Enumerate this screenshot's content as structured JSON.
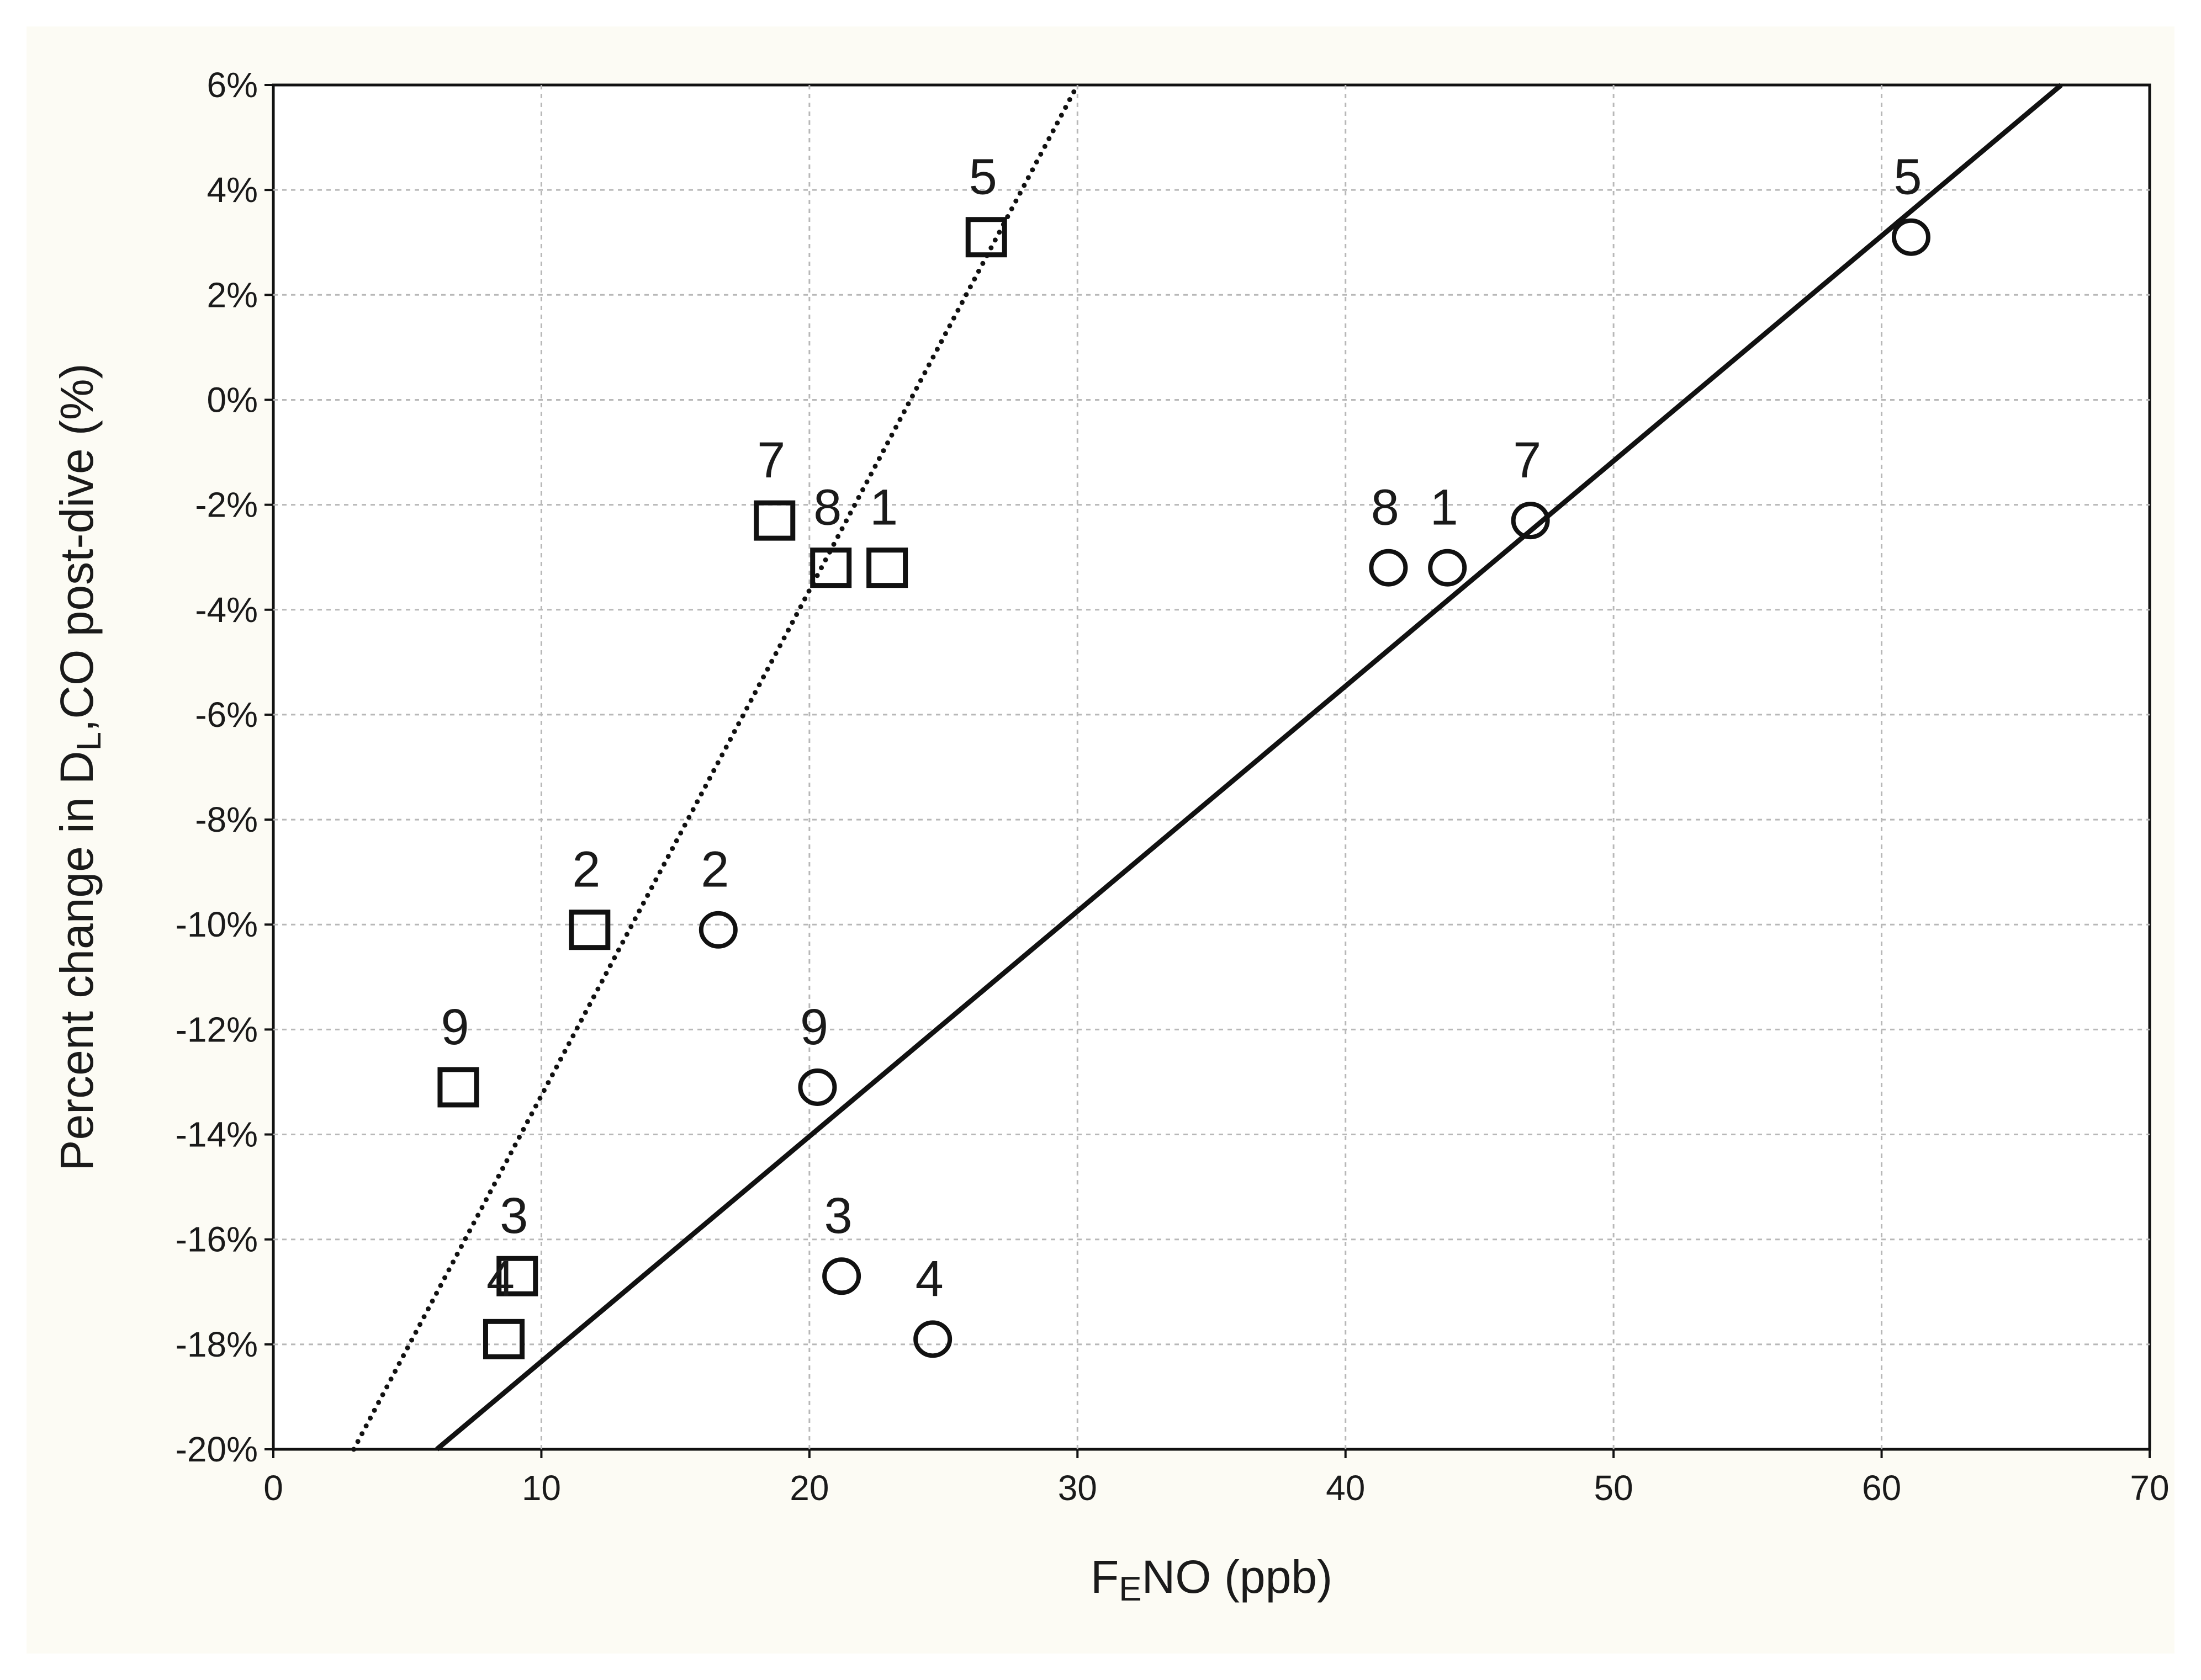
{
  "chart_data": {
    "type": "scatter",
    "xlabel": "FENO (ppb)",
    "xlabel_main": "F",
    "xlabel_sub": "E",
    "xlabel_rest": "NO (ppb)",
    "ylabel": "Percent change in DL,CO post-dive (%)",
    "ylabel_main": "Percent change in D",
    "ylabel_sub": "L",
    "ylabel_rest": ",CO post-dive (%)",
    "xlim": [
      0,
      70
    ],
    "ylim": [
      -20,
      6
    ],
    "x_ticks": [
      0,
      10,
      20,
      30,
      40,
      50,
      60,
      70
    ],
    "x_tick_labels": [
      "0",
      "10",
      "20",
      "30",
      "40",
      "50",
      "60",
      "70"
    ],
    "y_ticks": [
      -20,
      -18,
      -16,
      -14,
      -12,
      -10,
      -8,
      -6,
      -4,
      -2,
      0,
      2,
      4,
      6
    ],
    "y_tick_labels": [
      "-20%",
      "-18%",
      "-16%",
      "-14%",
      "-12%",
      "-10%",
      "-8%",
      "-6%",
      "-4%",
      "-2%",
      "0%",
      "2%",
      "4%",
      "6%"
    ],
    "grid": true,
    "series": [
      {
        "marker": "square",
        "points": [
          {
            "label": "5",
            "x": 26.6,
            "y": 3.1
          },
          {
            "label": "7",
            "x": 18.7,
            "y": -2.3
          },
          {
            "label": "8",
            "x": 20.8,
            "y": -3.2
          },
          {
            "label": "1",
            "x": 22.9,
            "y": -3.2
          },
          {
            "label": "2",
            "x": 11.8,
            "y": -10.1
          },
          {
            "label": "9",
            "x": 6.9,
            "y": -13.1
          },
          {
            "label": "3",
            "x": 9.1,
            "y": -16.7
          },
          {
            "label": "4",
            "x": 8.6,
            "y": -17.9
          }
        ],
        "fit": {
          "style": "dotted",
          "from": [
            3.0,
            -20.0
          ],
          "to": [
            30.0,
            6.0
          ]
        }
      },
      {
        "marker": "circle",
        "points": [
          {
            "label": "5",
            "x": 61.1,
            "y": 3.1
          },
          {
            "label": "7",
            "x": 46.9,
            "y": -2.3
          },
          {
            "label": "8",
            "x": 41.6,
            "y": -3.2
          },
          {
            "label": "1",
            "x": 43.8,
            "y": -3.2
          },
          {
            "label": "2",
            "x": 16.6,
            "y": -10.1
          },
          {
            "label": "9",
            "x": 20.3,
            "y": -13.1
          },
          {
            "label": "3",
            "x": 21.2,
            "y": -16.7
          },
          {
            "label": "4",
            "x": 24.6,
            "y": -17.9
          }
        ],
        "fit": {
          "style": "solid",
          "from": [
            6.1,
            -20.0
          ],
          "to": [
            66.7,
            6.0
          ]
        }
      }
    ]
  }
}
